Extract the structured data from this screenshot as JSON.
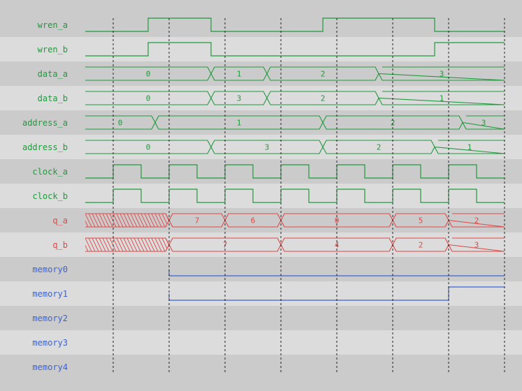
{
  "colors": {
    "row_dark": "#cbcbcb",
    "row_light": "#dcdcdc",
    "green": "#1f9a3c",
    "red": "#e04848",
    "blue": "#3a62d8",
    "grid": "#222222"
  },
  "time_end": 60,
  "grid_times": [
    4,
    12,
    20,
    28,
    36,
    44,
    52,
    60
  ],
  "signals": [
    {
      "name": "wren_a",
      "type": "bit",
      "color": "green",
      "init": 0,
      "edges": [
        [
          9,
          1
        ],
        [
          18,
          0
        ],
        [
          34,
          1
        ],
        [
          50,
          0
        ]
      ]
    },
    {
      "name": "wren_b",
      "type": "bit",
      "color": "green",
      "init": 0,
      "edges": [
        [
          9,
          1
        ],
        [
          18,
          0
        ],
        [
          50,
          1
        ]
      ]
    },
    {
      "name": "data_a",
      "type": "bus",
      "color": "green",
      "segments": [
        [
          0,
          18,
          "0"
        ],
        [
          18,
          26,
          "1"
        ],
        [
          26,
          42,
          "2"
        ],
        [
          42,
          60,
          "3"
        ]
      ]
    },
    {
      "name": "data_b",
      "type": "bus",
      "color": "green",
      "segments": [
        [
          0,
          18,
          "0"
        ],
        [
          18,
          26,
          "3"
        ],
        [
          26,
          42,
          "2"
        ],
        [
          42,
          60,
          "1"
        ]
      ]
    },
    {
      "name": "address_a",
      "type": "bus",
      "color": "green",
      "segments": [
        [
          0,
          10,
          "0"
        ],
        [
          10,
          34,
          "1"
        ],
        [
          34,
          54,
          "2"
        ],
        [
          54,
          60,
          "3"
        ]
      ]
    },
    {
      "name": "address_b",
      "type": "bus",
      "color": "green",
      "segments": [
        [
          0,
          18,
          "0"
        ],
        [
          18,
          34,
          "3"
        ],
        [
          34,
          50,
          "2"
        ],
        [
          50,
          60,
          "1"
        ]
      ]
    },
    {
      "name": "clock_a",
      "type": "clock",
      "color": "green",
      "first_rise": 4,
      "period": 8
    },
    {
      "name": "clock_b",
      "type": "clock",
      "color": "green",
      "first_rise": 4,
      "period": 8
    },
    {
      "name": "q_a",
      "type": "bus",
      "color": "red",
      "segments": [
        [
          0,
          12,
          null
        ],
        [
          12,
          20,
          "7"
        ],
        [
          20,
          28,
          "6"
        ],
        [
          28,
          44,
          "0"
        ],
        [
          44,
          52,
          "5"
        ],
        [
          52,
          60,
          "2"
        ]
      ]
    },
    {
      "name": "q_b",
      "type": "bus",
      "color": "red",
      "segments": [
        [
          0,
          12,
          null
        ],
        [
          12,
          28,
          "7"
        ],
        [
          28,
          44,
          "4"
        ],
        [
          44,
          52,
          "2"
        ],
        [
          52,
          60,
          "3"
        ]
      ]
    },
    {
      "name": "memory0",
      "type": "bit",
      "color": "blue",
      "start": 12,
      "init": 0,
      "edges": []
    },
    {
      "name": "memory1",
      "type": "bit",
      "color": "blue",
      "start": 12,
      "init": 0,
      "edges": [
        [
          52,
          1
        ]
      ]
    },
    {
      "name": "memory2",
      "type": "empty",
      "color": "blue"
    },
    {
      "name": "memory3",
      "type": "empty",
      "color": "blue"
    },
    {
      "name": "memory4",
      "type": "empty",
      "color": "blue"
    }
  ]
}
